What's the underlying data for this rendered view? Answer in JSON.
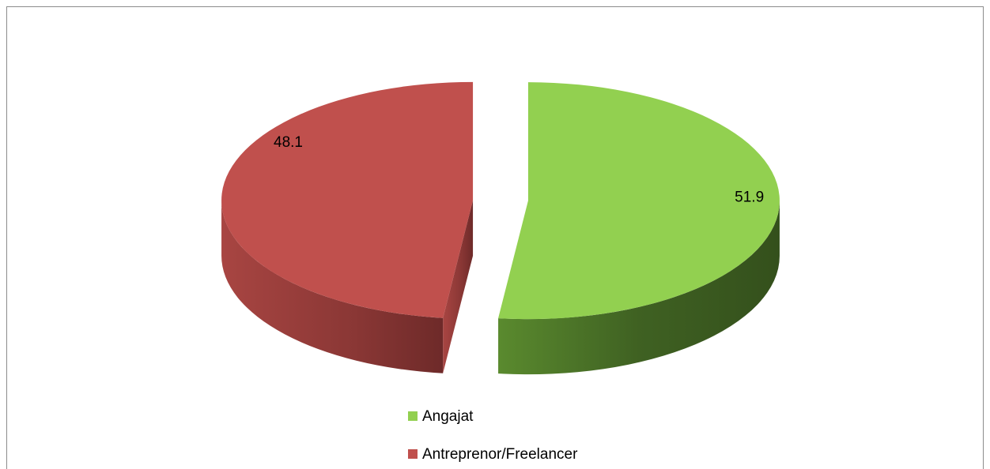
{
  "chart_data": {
    "type": "pie",
    "categories": [
      "Angajat",
      "Antreprenor/Freelancer"
    ],
    "values": [
      51.9,
      48.1
    ],
    "colors": [
      "#92d050",
      "#c0504d"
    ]
  }
}
